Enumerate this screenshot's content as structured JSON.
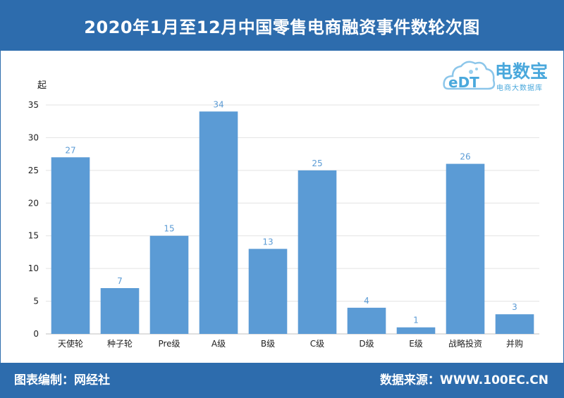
{
  "header": {
    "title": "2020年1月至12月中国零售电商融资事件数轮次图"
  },
  "logo": {
    "brand": "电数宝",
    "subtitle": "电商大数据库",
    "mark": "eDT"
  },
  "footer": {
    "left": "图表编制：网经社",
    "right": "数据来源：WWW.100EC.CN"
  },
  "colors": {
    "bar": "#5b9bd5",
    "label": "#5b9bd5",
    "header_bg": "#2d6cad"
  },
  "chart_data": {
    "type": "bar",
    "ylabel": "起",
    "ylim": [
      0,
      35
    ],
    "yticks": [
      0,
      5,
      10,
      15,
      20,
      25,
      30,
      35
    ],
    "grid": true,
    "categories": [
      "天使轮",
      "种子轮",
      "Pre级",
      "A级",
      "B级",
      "C级",
      "D级",
      "E级",
      "战略投资",
      "并购"
    ],
    "values": [
      27,
      7,
      15,
      34,
      13,
      25,
      4,
      1,
      26,
      3
    ]
  }
}
